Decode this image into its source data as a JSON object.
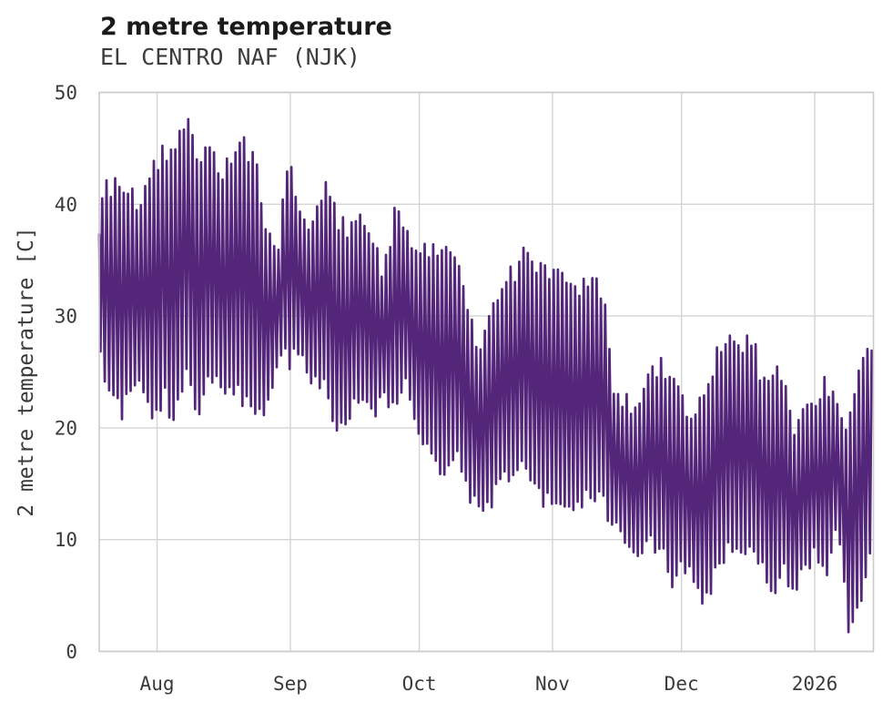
{
  "colors": {
    "background": "#ffffff",
    "series": "#54267a",
    "grid": "#d4d4d4",
    "frame": "#cbcbcb",
    "tick_text": "#3a3a3a",
    "title_text": "#1b1b1b",
    "subtitle_text": "#3c3c3c"
  },
  "chart_data": {
    "type": "line",
    "title": "2 metre temperature",
    "subtitle": "EL CENTRO NAF (NJK)",
    "xlabel": "",
    "ylabel": "2 metre temperature [C]",
    "ylim": [
      0,
      50
    ],
    "y_ticks": [
      0,
      10,
      20,
      30,
      40,
      50
    ],
    "x_tick_labels": [
      "Aug",
      "Sep",
      "Oct",
      "Nov",
      "Dec",
      "2026"
    ],
    "x_ticks": [
      {
        "label": "Aug",
        "day": 13.45
      },
      {
        "label": "Sep",
        "day": 44.45
      },
      {
        "label": "Oct",
        "day": 74.45
      },
      {
        "label": "Nov",
        "day": 105.45
      },
      {
        "label": "Dec",
        "day": 135.45
      },
      {
        "label": "2026",
        "day": 166.45
      }
    ],
    "x_range_days": [
      0,
      180.1
    ],
    "grid": true,
    "legend": false,
    "series": [
      {
        "name": "2 metre temperature",
        "color": "#54267a"
      }
    ],
    "sampling_note": "hourly series oscillating each day between the daily min and max below; day offsets are measured from the left edge of the plot (~2 weeks before the Aug tick)",
    "daily_envelope": {
      "day": [
        0,
        2.3,
        5.5,
        8.7,
        12.5,
        15,
        17.2,
        20.4,
        22.5,
        25.7,
        28.8,
        33.1,
        36.3,
        38.8,
        41.6,
        44.3,
        46.9,
        50,
        52.8,
        55.8,
        58.5,
        61.1,
        63.8,
        66.2,
        69.1,
        71.7,
        73.8,
        76.5,
        79.7,
        82.9,
        85.5,
        88.4,
        91.4,
        94.1,
        96.9,
        99.9,
        102.6,
        105.6,
        108.6,
        111.5,
        114.5,
        117.5,
        119.2,
        121.9,
        124.5,
        127.4,
        130.6,
        133.6,
        136.1,
        138.7,
        141.4,
        144.4,
        146.7,
        149.1,
        151.4,
        154.2,
        156.7,
        159.2,
        162,
        164.8,
        166.9,
        169,
        171.6,
        174.3,
        176.9,
        179.4,
        180.1
      ],
      "tmax": [
        40.3,
        41.5,
        41.7,
        40,
        43.5,
        44.5,
        44,
        48,
        44.6,
        44.5,
        42.5,
        45.5,
        43.6,
        37.5,
        36.5,
        44.1,
        38.8,
        38,
        41.3,
        38.5,
        37.5,
        39.4,
        37.2,
        33.5,
        40.3,
        37.5,
        36.1,
        35.5,
        35.6,
        35.5,
        30.5,
        26.5,
        31.5,
        33.3,
        34,
        36.2,
        33.8,
        33.5,
        33,
        32.6,
        32.5,
        32.4,
        23.5,
        22.5,
        21,
        24,
        25.6,
        23.5,
        22,
        21,
        23,
        27.5,
        28.4,
        27,
        28.5,
        24.5,
        24.8,
        24.5,
        19.5,
        22.8,
        22.5,
        23.9,
        21.5,
        20.5,
        25.8,
        26.5,
        28
      ],
      "tmin": [
        27,
        23.5,
        21.5,
        24,
        21.2,
        23,
        21,
        24.5,
        21.5,
        24,
        23.5,
        23,
        22,
        21.9,
        26.5,
        26,
        27.5,
        24,
        23.5,
        19.3,
        22,
        23,
        21,
        22.5,
        22,
        24.5,
        20.5,
        18.5,
        16.5,
        18,
        15,
        12.4,
        13.5,
        15.5,
        16,
        16.5,
        14,
        13.5,
        12,
        12.5,
        14.5,
        13,
        12,
        9.5,
        8.6,
        10.5,
        9,
        6.2,
        7.5,
        5.6,
        4.8,
        8,
        9.5,
        8.5,
        9,
        7.5,
        5.6,
        7,
        5.8,
        8,
        9.5,
        6.2,
        11,
        2.5,
        3.9,
        8,
        14
      ]
    }
  }
}
